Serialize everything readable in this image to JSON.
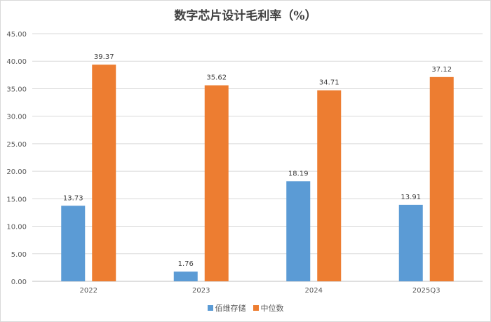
{
  "chart_data": {
    "type": "bar",
    "title": "数字芯片设计毛利率（%）",
    "categories": [
      "2022",
      "2023",
      "2024",
      "2025Q3"
    ],
    "series": [
      {
        "name": "佰维存储",
        "values": [
          13.73,
          1.76,
          18.19,
          13.91
        ],
        "color": "#5b9bd5"
      },
      {
        "name": "中位数",
        "values": [
          39.37,
          35.62,
          34.71,
          37.12
        ],
        "color": "#ed7d31"
      }
    ],
    "ylim": [
      0,
      45
    ],
    "yticks": [
      "0.00",
      "5.00",
      "10.00",
      "15.00",
      "20.00",
      "25.00",
      "30.00",
      "35.00",
      "40.00",
      "45.00"
    ],
    "grid": true,
    "legend": "bottom",
    "data_labels": true
  }
}
